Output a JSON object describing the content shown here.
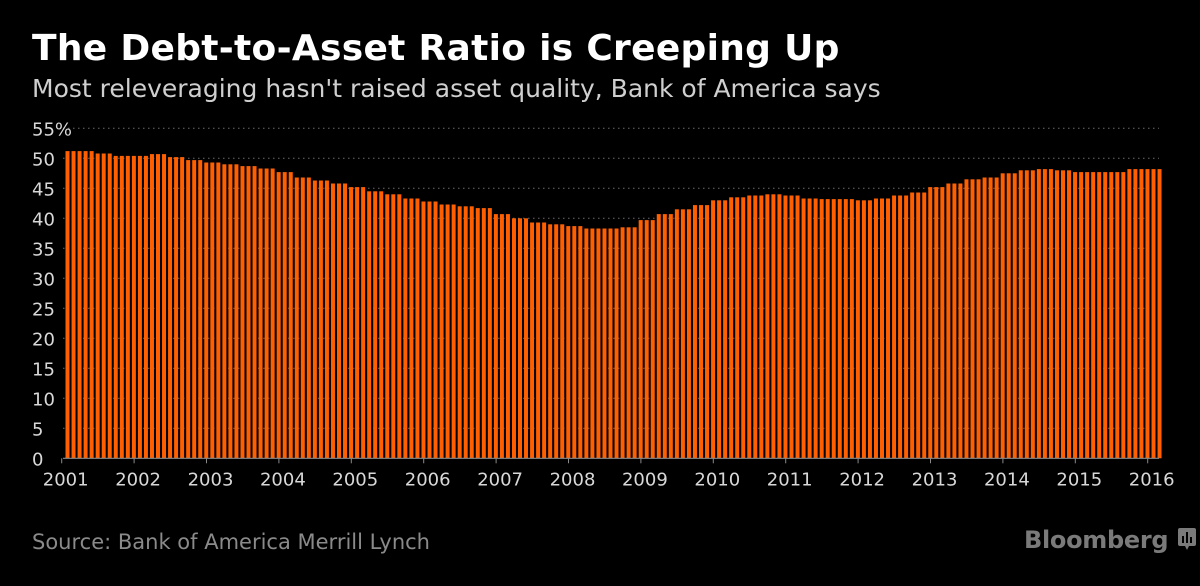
{
  "header": {
    "title": "The Debt-to-Asset Ratio is Creeping Up",
    "subtitle": "Most releveraging hasn't raised asset quality, Bank of America says"
  },
  "footer": {
    "source": "Source: Bank of America Merrill Lynch",
    "logo": "Bloomberg"
  },
  "chart_data": {
    "type": "bar",
    "title": "The Debt-to-Asset Ratio is Creeping Up",
    "subtitle": "Most releveraging hasn't raised asset quality, Bank of America says",
    "xlabel": "",
    "ylabel": "",
    "ylim": [
      0,
      55
    ],
    "y_unit": "%",
    "y_ticks": [
      "0",
      "5",
      "10",
      "15",
      "20",
      "25",
      "30",
      "35",
      "40",
      "45",
      "50",
      "55%"
    ],
    "x_ticks": [
      "2001",
      "2002",
      "2003",
      "2004",
      "2005",
      "2006",
      "2007",
      "2008",
      "2009",
      "2010",
      "2011",
      "2012",
      "2013",
      "2014",
      "2015",
      "2016"
    ],
    "grid": true,
    "bar_color": "#ff5f00",
    "series": [
      {
        "values": [
          51.2,
          51.2,
          51.2,
          51.2,
          51.2,
          50.8,
          50.8,
          50.8,
          50.4,
          50.4,
          50.4,
          50.4,
          50.4,
          50.4,
          50.7,
          50.7,
          50.7,
          50.2,
          50.2,
          50.2,
          49.7,
          49.7,
          49.7,
          49.3,
          49.3,
          49.3,
          49.0,
          49.0,
          49.0,
          48.7,
          48.7,
          48.7,
          48.3,
          48.3,
          48.3,
          47.7,
          47.7,
          47.7,
          46.8,
          46.8,
          46.8,
          46.3,
          46.3,
          46.3,
          45.8,
          45.8,
          45.8,
          45.2,
          45.2,
          45.2,
          44.5,
          44.5,
          44.5,
          44.0,
          44.0,
          44.0,
          43.3,
          43.3,
          43.3,
          42.8,
          42.8,
          42.8,
          42.3,
          42.3,
          42.3,
          42.0,
          42.0,
          42.0,
          41.7,
          41.7,
          41.7,
          40.7,
          40.7,
          40.7,
          40.0,
          40.0,
          40.0,
          39.3,
          39.3,
          39.3,
          39.0,
          39.0,
          39.0,
          38.7,
          38.7,
          38.7,
          38.3,
          38.3,
          38.3,
          38.3,
          38.3,
          38.3,
          38.5,
          38.5,
          38.5,
          39.7,
          39.7,
          39.7,
          40.7,
          40.7,
          40.7,
          41.5,
          41.5,
          41.5,
          42.2,
          42.2,
          42.2,
          43.0,
          43.0,
          43.0,
          43.5,
          43.5,
          43.5,
          43.8,
          43.8,
          43.8,
          44.0,
          44.0,
          44.0,
          43.8,
          43.8,
          43.8,
          43.3,
          43.3,
          43.3,
          43.2,
          43.2,
          43.2,
          43.2,
          43.2,
          43.2,
          43.0,
          43.0,
          43.0,
          43.3,
          43.3,
          43.3,
          43.8,
          43.8,
          43.8,
          44.3,
          44.3,
          44.3,
          45.2,
          45.2,
          45.2,
          45.8,
          45.8,
          45.8,
          46.5,
          46.5,
          46.5,
          46.8,
          46.8,
          46.8,
          47.5,
          47.5,
          47.5,
          48.0,
          48.0,
          48.0,
          48.2,
          48.2,
          48.2,
          48.0,
          48.0,
          48.0,
          47.7,
          47.7,
          47.7,
          47.7,
          47.7,
          47.7,
          47.7,
          47.7,
          47.7,
          48.2,
          48.2,
          48.2,
          48.2,
          48.2,
          48.2
        ]
      }
    ]
  }
}
